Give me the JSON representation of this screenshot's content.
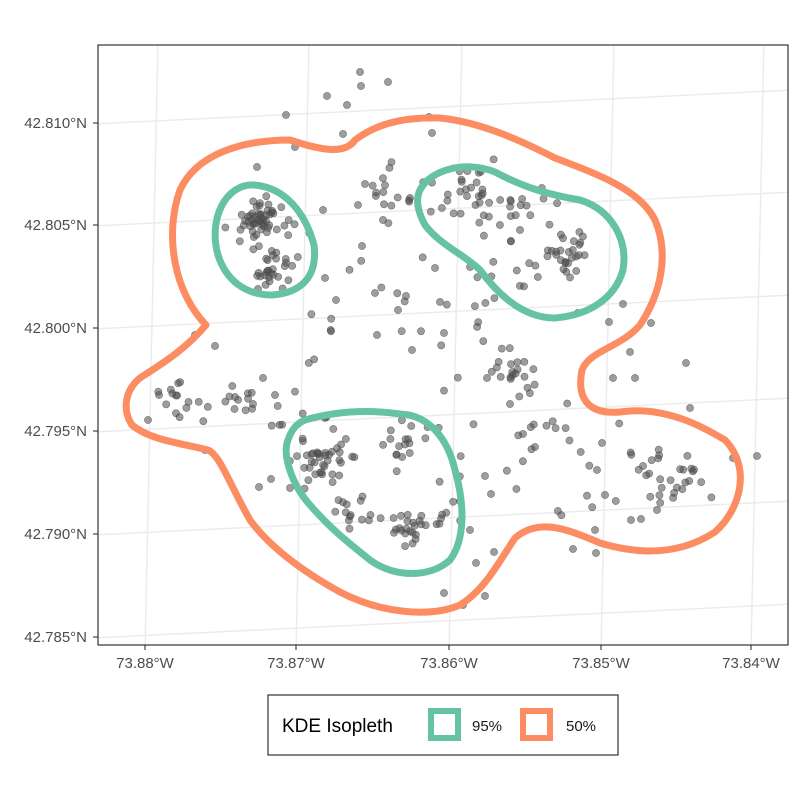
{
  "colors": {
    "panel_border": "#333333",
    "graticule": "#ebebeb",
    "points": "#4d4d4d",
    "isopleth_95": "#66c2a5",
    "isopleth_50": "#fc8d62"
  },
  "chart_data": {
    "type": "map",
    "title": "",
    "xlabel": "",
    "ylabel": "",
    "grid": true,
    "legend_position": "bottom",
    "x_ticks": [
      "73.88°W",
      "73.87°W",
      "73.86°W",
      "73.85°W",
      "73.84°W"
    ],
    "y_ticks": [
      "42.785°N",
      "42.790°N",
      "42.795°N",
      "42.800°N",
      "42.805°N",
      "42.810°N"
    ],
    "legend": {
      "title": "KDE Isopleth",
      "entries": [
        {
          "label": "95%",
          "color": "#66c2a5"
        },
        {
          "label": "50%",
          "color": "#fc8d62"
        }
      ]
    },
    "series": [
      {
        "name": "95%",
        "kind": "isopleth",
        "color": "#66c2a5"
      },
      {
        "name": "50%",
        "kind": "isopleth",
        "color": "#fc8d62"
      }
    ]
  }
}
